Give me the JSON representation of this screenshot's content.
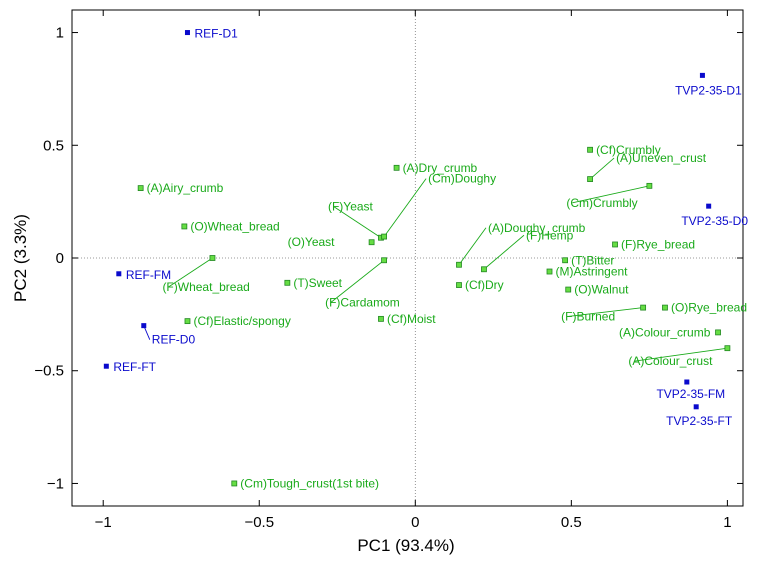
{
  "chart_data": {
    "type": "scatter",
    "xlabel": "PC1 (93.4%)",
    "ylabel": "PC2 (3.3%)",
    "xlim": [
      -1.1,
      1.05
    ],
    "ylim": [
      -1.1,
      1.1
    ],
    "xticks": [
      -1,
      -0.5,
      0,
      0.5,
      1
    ],
    "yticks": [
      -1,
      -0.5,
      0,
      0.5,
      1
    ],
    "xtick_labels": [
      "−1",
      "−0.5",
      "0",
      "0.5",
      "1"
    ],
    "ytick_labels": [
      "−1",
      "−0.5",
      "0",
      "0.5",
      "1"
    ],
    "grid": false,
    "zero_lines": true,
    "colors": {
      "samples": "#0a0acc",
      "attributes": "#1aaa1a",
      "attribute_fill": "#66dd44",
      "axis": "#000000"
    },
    "series": [
      {
        "role": "samples",
        "points": [
          {
            "label": "REF-D1",
            "x": -0.73,
            "y": 1.0
          },
          {
            "label": "REF-FM",
            "x": -0.95,
            "y": -0.07
          },
          {
            "label": "REF-D0",
            "x": -0.87,
            "y": -0.3
          },
          {
            "label": "REF-FT",
            "x": -0.99,
            "y": -0.48
          },
          {
            "label": "TVP2-35-D1",
            "x": 0.92,
            "y": 0.81
          },
          {
            "label": "TVP2-35-D0",
            "x": 0.94,
            "y": 0.23
          },
          {
            "label": "TVP2-35-FM",
            "x": 0.87,
            "y": -0.55
          },
          {
            "label": "TVP2-35-FT",
            "x": 0.9,
            "y": -0.66
          }
        ]
      },
      {
        "role": "attributes",
        "points": [
          {
            "label": "(A)Airy_crumb",
            "x": -0.88,
            "y": 0.31
          },
          {
            "label": "(O)Wheat_bread",
            "x": -0.74,
            "y": 0.14
          },
          {
            "label": "(F)Wheat_bread",
            "x": -0.65,
            "y": 0.0
          },
          {
            "label": "(Cf)Elastic/spongy",
            "x": -0.73,
            "y": -0.28
          },
          {
            "label": "(T)Sweet",
            "x": -0.41,
            "y": -0.11
          },
          {
            "label": "(F)Cardamom",
            "x": -0.1,
            "y": -0.01
          },
          {
            "label": "(Cf)Moist",
            "x": -0.11,
            "y": -0.27
          },
          {
            "label": "(F)Yeast",
            "x": -0.11,
            "y": 0.09
          },
          {
            "label": "(O)Yeast",
            "x": -0.14,
            "y": 0.07
          },
          {
            "label": "(Cm)Doughy",
            "x": -0.1,
            "y": 0.095
          },
          {
            "label": "(A)Dry_crumb",
            "x": -0.06,
            "y": 0.4
          },
          {
            "label": "(Cm)Tough_crust(1st bite)",
            "x": -0.58,
            "y": -1.0
          },
          {
            "label": "(A)Doughy_crumb",
            "x": 0.14,
            "y": -0.03
          },
          {
            "label": "(Cf)Dry",
            "x": 0.14,
            "y": -0.12
          },
          {
            "label": "(F)Hemp",
            "x": 0.22,
            "y": -0.05
          },
          {
            "label": "(M)Astringent",
            "x": 0.43,
            "y": -0.06
          },
          {
            "label": "(T)Bitter",
            "x": 0.48,
            "y": -0.01
          },
          {
            "label": "(O)Walnut",
            "x": 0.49,
            "y": -0.14
          },
          {
            "label": "(Cf)Crumbly",
            "x": 0.56,
            "y": 0.48
          },
          {
            "label": "(A)Uneven_crust",
            "x": 0.56,
            "y": 0.35
          },
          {
            "label": "(Cm)Crumbly",
            "x": 0.75,
            "y": 0.32
          },
          {
            "label": "(F)Rye_bread",
            "x": 0.64,
            "y": 0.06
          },
          {
            "label": "(F)Burned",
            "x": 0.73,
            "y": -0.22
          },
          {
            "label": "(O)Rye_bread",
            "x": 0.8,
            "y": -0.22
          },
          {
            "label": "(A)Colour_crumb",
            "x": 0.97,
            "y": -0.33
          },
          {
            "label": "(A)Colour_crust",
            "x": 1.0,
            "y": -0.4
          }
        ]
      }
    ]
  }
}
